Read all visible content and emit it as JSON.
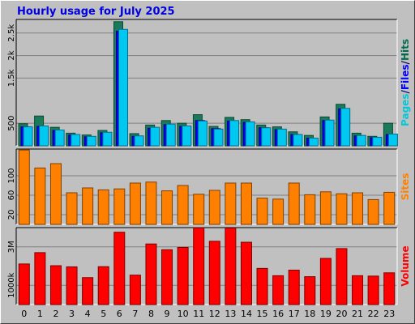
{
  "chart_data": {
    "type": "bar",
    "title": "Hourly usage for July 2025",
    "categories": [
      "0",
      "1",
      "2",
      "3",
      "4",
      "5",
      "6",
      "7",
      "8",
      "9",
      "10",
      "11",
      "12",
      "13",
      "14",
      "15",
      "16",
      "17",
      "18",
      "19",
      "20",
      "21",
      "22",
      "23"
    ],
    "panels": [
      {
        "id": "top",
        "ylabel_parts": [
          {
            "text": "Pages",
            "color": "#00c8d8"
          },
          {
            "text": "/",
            "color": "#000080"
          },
          {
            "text": "Files",
            "color": "#0000ff"
          },
          {
            "text": "/",
            "color": "#000080"
          },
          {
            "text": "Hits",
            "color": "#006a4d"
          }
        ],
        "ylim": [
          0,
          2800
        ],
        "yticks": [
          {
            "value": 500,
            "label": "500"
          },
          {
            "value": 1500,
            "label": "1.5k"
          },
          {
            "value": 2000,
            "label": "2k"
          },
          {
            "value": 2500,
            "label": "2.5k"
          }
        ],
        "series": [
          {
            "name": "Hits",
            "color": "#1a7a5a",
            "values": [
              490,
              660,
              410,
              280,
              240,
              340,
              2750,
              270,
              460,
              560,
              500,
              690,
              430,
              630,
              580,
              460,
              420,
              310,
              230,
              640,
              920,
              280,
              210,
              500
            ]
          },
          {
            "name": "Files",
            "color": "#0000ff",
            "values": [
              420,
              430,
              340,
              240,
              200,
              290,
              2540,
              210,
              390,
              470,
              430,
              560,
              380,
              550,
              520,
              400,
              360,
              250,
              170,
              560,
              820,
              220,
              180,
              250
            ]
          },
          {
            "name": "Pages",
            "color": "#00c8f0",
            "values": [
              420,
              440,
              350,
              250,
              210,
              300,
              2580,
              220,
              410,
              480,
              440,
              550,
              370,
              560,
              530,
              400,
              370,
              250,
              170,
              570,
              830,
              230,
              190,
              260
            ]
          }
        ]
      },
      {
        "id": "mid",
        "ylabel_parts": [
          {
            "text": "Sites",
            "color": "#ff8000"
          }
        ],
        "ylim": [
          0,
          155
        ],
        "yticks": [
          {
            "value": 20,
            "label": "20"
          },
          {
            "value": 60,
            "label": "60"
          },
          {
            "value": 100,
            "label": "100"
          }
        ],
        "series": [
          {
            "name": "Sites",
            "color": "#ff8000",
            "values": [
              153,
              116,
              125,
              65,
              75,
              71,
              73,
              85,
              87,
              69,
              80,
              62,
              70,
              85,
              85,
              54,
              52,
              85,
              61,
              67,
              63,
              65,
              51,
              66
            ]
          }
        ]
      },
      {
        "id": "bot",
        "ylabel_parts": [
          {
            "text": "Volume",
            "color": "#ff0000"
          }
        ],
        "ylim": [
          0,
          4000000
        ],
        "yticks": [
          {
            "value": 1000000,
            "label": "1000k"
          },
          {
            "value": 3000000,
            "label": "3M"
          }
        ],
        "series": [
          {
            "name": "Volume",
            "color": "#ff0000",
            "values": [
              2110000,
              2700000,
              2020000,
              1960000,
              1400000,
              1970000,
              3760000,
              1530000,
              3150000,
              2850000,
              2970000,
              3990000,
              3290000,
              3980000,
              3240000,
              1880000,
              1500000,
              1790000,
              1450000,
              2400000,
              2910000,
              1500000,
              1480000,
              1650000
            ]
          }
        ]
      }
    ]
  }
}
